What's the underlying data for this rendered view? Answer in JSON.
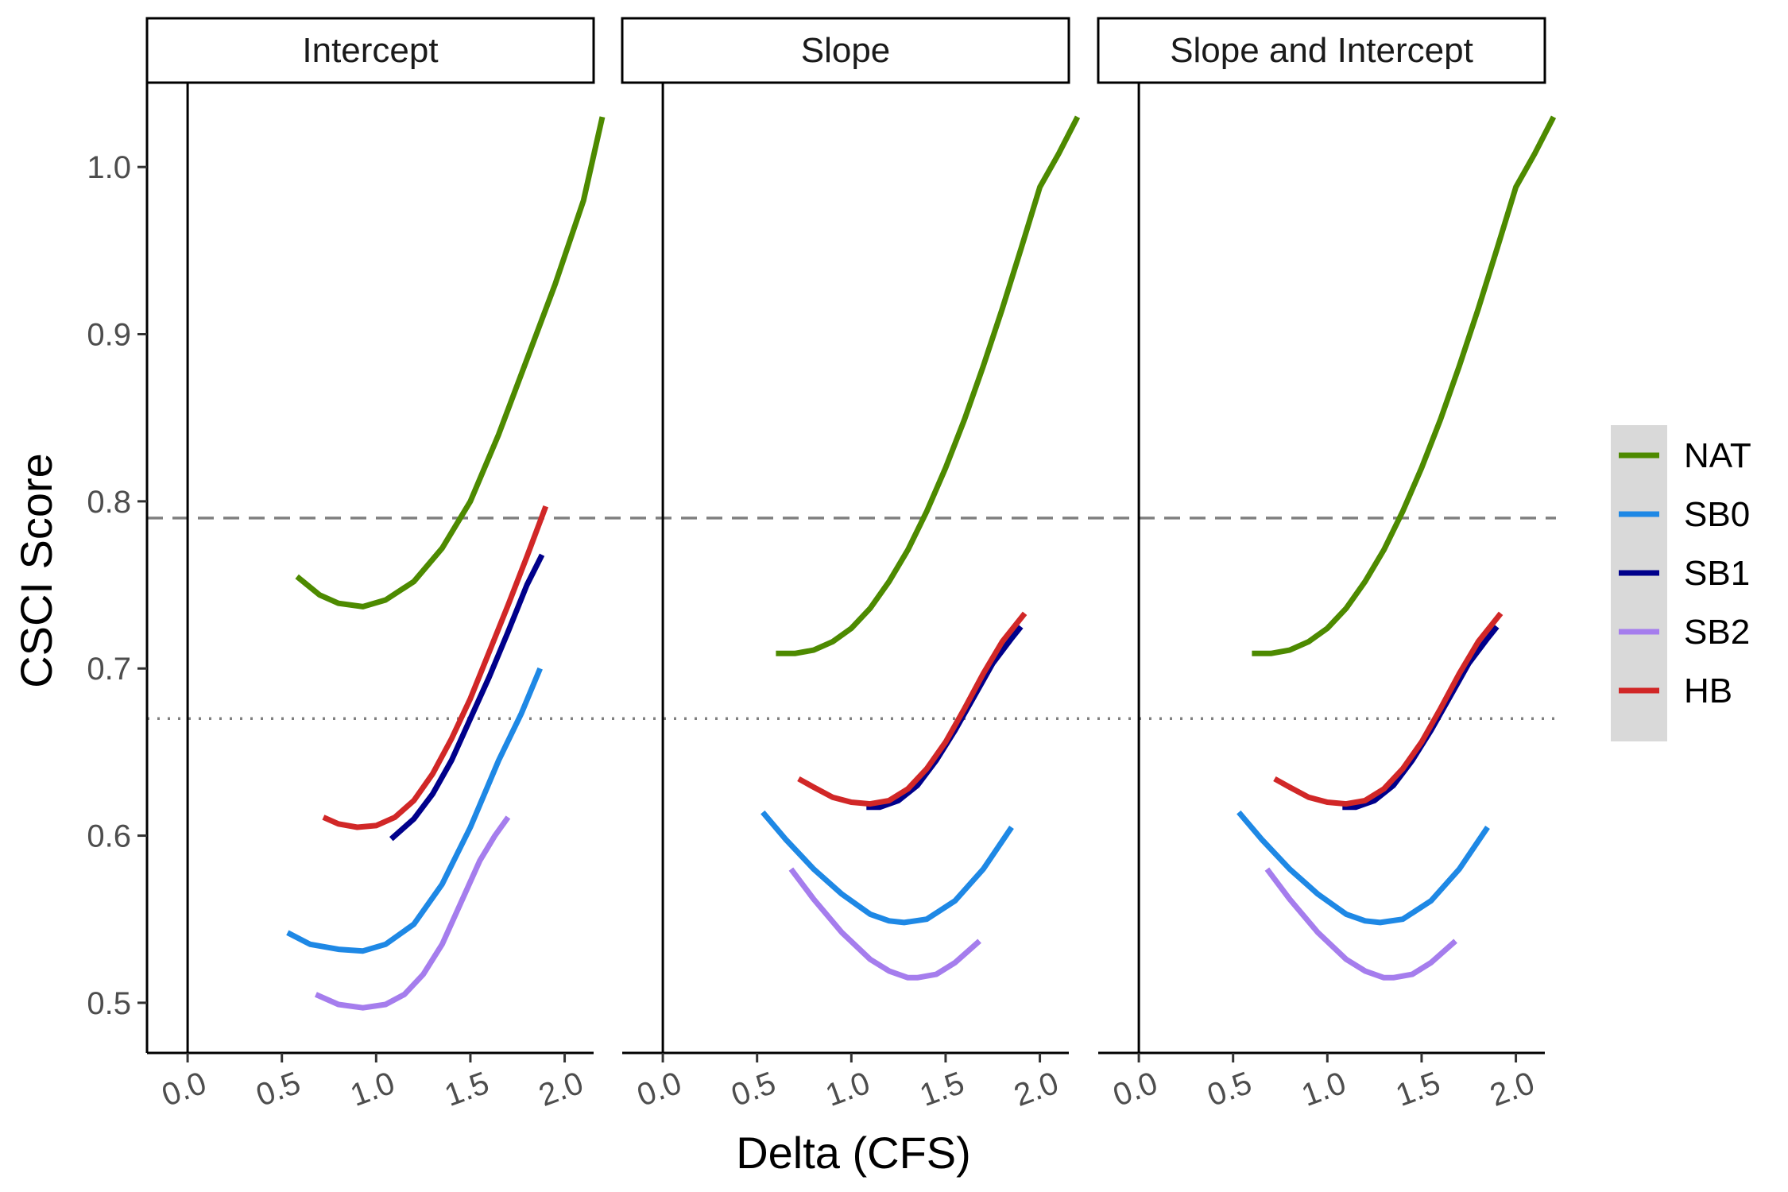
{
  "chart_data": {
    "type": "line",
    "facets": [
      "Intercept",
      "Slope",
      "Slope and Intercept"
    ],
    "xlabel": "Delta (CFS)",
    "ylabel": "CSCI Score",
    "xlim": [
      -0.11,
      2.2
    ],
    "ylim": [
      0.47,
      1.05
    ],
    "x_ticks": [
      "0.0",
      "0.5",
      "1.0",
      "1.5",
      "2.0"
    ],
    "y_ticks": [
      "0.5",
      "0.6",
      "0.7",
      "0.8",
      "0.9",
      "1.0"
    ],
    "reference_lines": [
      {
        "y": 0.79,
        "style": "dashed"
      },
      {
        "y": 0.67,
        "style": "dotted"
      }
    ],
    "vertical_line_x": 0,
    "grid": false,
    "legend_position": "right",
    "legend": [
      {
        "name": "NAT",
        "color": "#4d8a00"
      },
      {
        "name": "SB0",
        "color": "#1e88e5"
      },
      {
        "name": "SB1",
        "color": "#00008b"
      },
      {
        "name": "SB2",
        "color": "#a57ded"
      },
      {
        "name": "HB",
        "color": "#d12727"
      }
    ],
    "panels": [
      {
        "facet": "Intercept",
        "series": [
          {
            "name": "NAT",
            "x": [
              0.58,
              0.7,
              0.8,
              0.93,
              1.05,
              1.2,
              1.35,
              1.5,
              1.65,
              1.8,
              1.95,
              2.1,
              2.2
            ],
            "y": [
              0.755,
              0.744,
              0.739,
              0.737,
              0.741,
              0.752,
              0.772,
              0.8,
              0.84,
              0.885,
              0.93,
              0.98,
              1.03
            ]
          },
          {
            "name": "SB0",
            "x": [
              0.53,
              0.65,
              0.8,
              0.93,
              1.05,
              1.2,
              1.35,
              1.5,
              1.65,
              1.77,
              1.87
            ],
            "y": [
              0.542,
              0.535,
              0.532,
              0.531,
              0.535,
              0.547,
              0.571,
              0.605,
              0.645,
              0.673,
              0.7
            ]
          },
          {
            "name": "SB1",
            "x": [
              1.08,
              1.2,
              1.3,
              1.4,
              1.5,
              1.6,
              1.7,
              1.8,
              1.88
            ],
            "y": [
              0.598,
              0.61,
              0.625,
              0.645,
              0.67,
              0.695,
              0.722,
              0.75,
              0.768
            ]
          },
          {
            "name": "SB2",
            "x": [
              0.68,
              0.8,
              0.93,
              1.05,
              1.15,
              1.25,
              1.35,
              1.45,
              1.55,
              1.63,
              1.7
            ],
            "y": [
              0.505,
              0.499,
              0.497,
              0.499,
              0.505,
              0.517,
              0.535,
              0.56,
              0.585,
              0.6,
              0.611
            ]
          },
          {
            "name": "HB",
            "x": [
              0.72,
              0.8,
              0.9,
              1.0,
              1.1,
              1.2,
              1.3,
              1.4,
              1.5,
              1.6,
              1.7,
              1.8,
              1.9
            ],
            "y": [
              0.611,
              0.607,
              0.605,
              0.606,
              0.611,
              0.621,
              0.637,
              0.658,
              0.682,
              0.71,
              0.738,
              0.767,
              0.797
            ]
          }
        ]
      },
      {
        "facet": "Slope",
        "series": [
          {
            "name": "NAT",
            "x": [
              0.6,
              0.7,
              0.8,
              0.9,
              1.0,
              1.1,
              1.2,
              1.3,
              1.4,
              1.5,
              1.6,
              1.7,
              1.8,
              1.9,
              2.0,
              2.1,
              2.2
            ],
            "y": [
              0.709,
              0.709,
              0.711,
              0.716,
              0.724,
              0.736,
              0.752,
              0.771,
              0.794,
              0.82,
              0.849,
              0.881,
              0.915,
              0.951,
              0.988,
              1.008,
              1.03
            ]
          },
          {
            "name": "SB0",
            "x": [
              0.53,
              0.65,
              0.8,
              0.95,
              1.1,
              1.2,
              1.28,
              1.4,
              1.55,
              1.7,
              1.85
            ],
            "y": [
              0.614,
              0.598,
              0.58,
              0.565,
              0.553,
              0.549,
              0.548,
              0.55,
              0.561,
              0.58,
              0.605
            ]
          },
          {
            "name": "SB1",
            "x": [
              1.08,
              1.15,
              1.25,
              1.35,
              1.45,
              1.55,
              1.65,
              1.75,
              1.85,
              1.9
            ],
            "y": [
              0.617,
              0.617,
              0.621,
              0.63,
              0.645,
              0.663,
              0.683,
              0.703,
              0.718,
              0.725
            ]
          },
          {
            "name": "SB2",
            "x": [
              0.68,
              0.8,
              0.95,
              1.1,
              1.2,
              1.3,
              1.35,
              1.45,
              1.55,
              1.68
            ],
            "y": [
              0.58,
              0.562,
              0.542,
              0.526,
              0.519,
              0.515,
              0.515,
              0.517,
              0.524,
              0.537
            ]
          },
          {
            "name": "HB",
            "x": [
              0.72,
              0.8,
              0.9,
              1.0,
              1.1,
              1.2,
              1.3,
              1.4,
              1.5,
              1.6,
              1.7,
              1.8,
              1.92
            ],
            "y": [
              0.634,
              0.629,
              0.623,
              0.62,
              0.619,
              0.621,
              0.628,
              0.64,
              0.656,
              0.676,
              0.697,
              0.716,
              0.733
            ]
          }
        ]
      },
      {
        "facet": "Slope and Intercept",
        "series": [
          {
            "name": "NAT",
            "x": [
              0.6,
              0.7,
              0.8,
              0.9,
              1.0,
              1.1,
              1.2,
              1.3,
              1.4,
              1.5,
              1.6,
              1.7,
              1.8,
              1.9,
              2.0,
              2.1,
              2.2
            ],
            "y": [
              0.709,
              0.709,
              0.711,
              0.716,
              0.724,
              0.736,
              0.752,
              0.771,
              0.794,
              0.82,
              0.849,
              0.881,
              0.915,
              0.951,
              0.988,
              1.008,
              1.03
            ]
          },
          {
            "name": "SB0",
            "x": [
              0.53,
              0.65,
              0.8,
              0.95,
              1.1,
              1.2,
              1.28,
              1.4,
              1.55,
              1.7,
              1.85
            ],
            "y": [
              0.614,
              0.598,
              0.58,
              0.565,
              0.553,
              0.549,
              0.548,
              0.55,
              0.561,
              0.58,
              0.605
            ]
          },
          {
            "name": "SB1",
            "x": [
              1.08,
              1.15,
              1.25,
              1.35,
              1.45,
              1.55,
              1.65,
              1.75,
              1.85,
              1.9
            ],
            "y": [
              0.617,
              0.617,
              0.621,
              0.63,
              0.645,
              0.663,
              0.683,
              0.703,
              0.718,
              0.725
            ]
          },
          {
            "name": "SB2",
            "x": [
              0.68,
              0.8,
              0.95,
              1.1,
              1.2,
              1.3,
              1.35,
              1.45,
              1.55,
              1.68
            ],
            "y": [
              0.58,
              0.562,
              0.542,
              0.526,
              0.519,
              0.515,
              0.515,
              0.517,
              0.524,
              0.537
            ]
          },
          {
            "name": "HB",
            "x": [
              0.72,
              0.8,
              0.9,
              1.0,
              1.1,
              1.2,
              1.3,
              1.4,
              1.5,
              1.6,
              1.7,
              1.8,
              1.92
            ],
            "y": [
              0.634,
              0.629,
              0.623,
              0.62,
              0.619,
              0.621,
              0.628,
              0.64,
              0.656,
              0.676,
              0.697,
              0.716,
              0.733
            ]
          }
        ]
      }
    ]
  }
}
